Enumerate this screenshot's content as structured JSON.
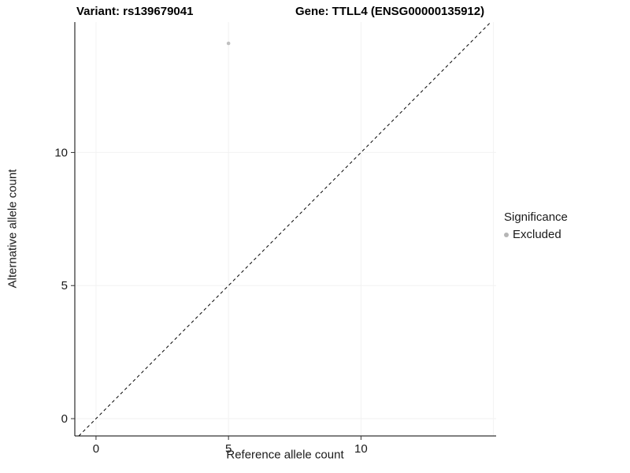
{
  "chart_data": {
    "type": "scatter",
    "title_left": "Variant: rs139679041",
    "title_right": "Gene: TTLL4 (ENSG00000135912)",
    "xlabel": "Reference allele count",
    "ylabel": "Alternative allele count",
    "xlim": [
      -0.8,
      15.1
    ],
    "ylim": [
      -0.65,
      14.9
    ],
    "x_ticks": [
      0,
      5,
      10
    ],
    "y_ticks": [
      0,
      5,
      10
    ],
    "x_grid": [
      0,
      5,
      10,
      15
    ],
    "y_grid": [
      0,
      5,
      10
    ],
    "grid_color": "#f2f2f2",
    "grid_on": true,
    "point_color": "#b5b5b5",
    "points": [
      {
        "x": 5,
        "y": 14.1,
        "significance": "Excluded"
      }
    ],
    "identity_line": {
      "style": "dashed",
      "from": [
        -0.65,
        -0.65
      ],
      "to": [
        14.9,
        14.9
      ],
      "color": "#000000"
    },
    "legend": {
      "title": "Significance",
      "position": "right",
      "items": [
        {
          "label": "Excluded",
          "color": "#b5b5b5"
        }
      ]
    }
  }
}
